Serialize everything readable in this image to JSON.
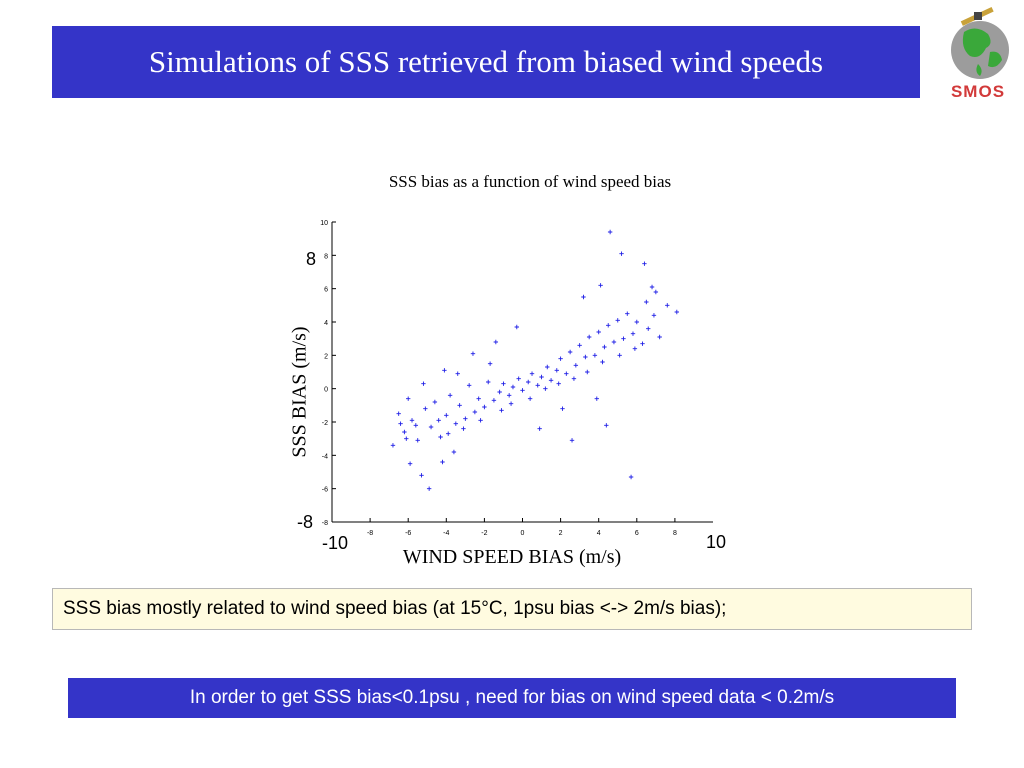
{
  "header": {
    "title": "Simulations of SSS retrieved from biased wind speeds"
  },
  "logo": {
    "text": "SMOS",
    "icon": "smos-satellite-globe-icon"
  },
  "chart_data": {
    "type": "scatter",
    "title": "SSS bias as a function of wind speed bias",
    "xlabel": "WIND SPEED BIAS (m/s)",
    "ylabel": "SSS BIAS (m/s)",
    "xlim": [
      -10,
      10
    ],
    "ylim": [
      -8,
      10
    ],
    "xticks": [
      -8,
      -6,
      -4,
      -2,
      0,
      2,
      4,
      6,
      8
    ],
    "yticks": [
      -8,
      -6,
      -4,
      -2,
      0,
      2,
      4,
      6,
      8,
      10
    ],
    "annotations": {
      "x_min": "-10",
      "x_max": "10",
      "y_min": "-8",
      "y_max": "8"
    },
    "marker": "+",
    "color": "#1f1fe6",
    "grid": false,
    "series": [
      {
        "points": [
          [
            -6.2,
            -2.6
          ],
          [
            -5.8,
            -1.9
          ],
          [
            -5.5,
            -3.1
          ],
          [
            -5.1,
            -1.2
          ],
          [
            -4.8,
            -2.3
          ],
          [
            -4.6,
            -0.8
          ],
          [
            -4.3,
            -2.9
          ],
          [
            -4.0,
            -1.6
          ],
          [
            -3.8,
            -0.4
          ],
          [
            -3.5,
            -2.1
          ],
          [
            -3.3,
            -1.0
          ],
          [
            -3.0,
            -1.8
          ],
          [
            -2.8,
            0.2
          ],
          [
            -2.5,
            -1.4
          ],
          [
            -2.3,
            -0.6
          ],
          [
            -2.0,
            -1.1
          ],
          [
            -1.8,
            0.4
          ],
          [
            -1.5,
            -0.7
          ],
          [
            -1.2,
            -0.2
          ],
          [
            -1.0,
            0.3
          ],
          [
            -0.7,
            -0.4
          ],
          [
            -0.5,
            0.1
          ],
          [
            -0.2,
            0.6
          ],
          [
            0.0,
            -0.1
          ],
          [
            0.3,
            0.4
          ],
          [
            0.5,
            0.9
          ],
          [
            0.8,
            0.2
          ],
          [
            1.0,
            0.7
          ],
          [
            1.3,
            1.3
          ],
          [
            1.5,
            0.5
          ],
          [
            1.8,
            1.1
          ],
          [
            2.0,
            1.8
          ],
          [
            2.3,
            0.9
          ],
          [
            2.5,
            2.2
          ],
          [
            2.8,
            1.4
          ],
          [
            3.0,
            2.6
          ],
          [
            3.3,
            1.9
          ],
          [
            3.5,
            3.1
          ],
          [
            3.8,
            2.0
          ],
          [
            4.0,
            3.4
          ],
          [
            4.3,
            2.5
          ],
          [
            4.5,
            3.8
          ],
          [
            4.8,
            2.8
          ],
          [
            5.0,
            4.1
          ],
          [
            5.3,
            3.0
          ],
          [
            5.5,
            4.5
          ],
          [
            5.8,
            3.3
          ],
          [
            6.0,
            4.0
          ],
          [
            6.3,
            2.7
          ],
          [
            6.6,
            3.6
          ],
          [
            6.9,
            4.4
          ],
          [
            7.2,
            3.1
          ],
          [
            -6.8,
            -3.4
          ],
          [
            -6.5,
            -1.5
          ],
          [
            -5.9,
            -4.5
          ],
          [
            -5.3,
            -5.2
          ],
          [
            -4.9,
            -6.0
          ],
          [
            -4.2,
            -4.4
          ],
          [
            -3.6,
            -3.8
          ],
          [
            -6.0,
            -0.6
          ],
          [
            -5.2,
            0.3
          ],
          [
            -4.1,
            1.1
          ],
          [
            -3.4,
            0.9
          ],
          [
            -2.6,
            2.1
          ],
          [
            -1.7,
            1.5
          ],
          [
            3.2,
            5.5
          ],
          [
            4.1,
            6.2
          ],
          [
            4.6,
            9.4
          ],
          [
            5.2,
            8.1
          ],
          [
            6.4,
            7.5
          ],
          [
            5.7,
            -5.3
          ],
          [
            4.4,
            -2.2
          ],
          [
            2.6,
            -3.1
          ],
          [
            0.9,
            -2.4
          ],
          [
            -0.3,
            3.7
          ],
          [
            -1.4,
            2.8
          ],
          [
            7.6,
            5.0
          ],
          [
            8.1,
            4.6
          ],
          [
            6.8,
            6.1
          ],
          [
            3.9,
            -0.6
          ],
          [
            2.1,
            -1.2
          ],
          [
            -5.6,
            -2.2
          ],
          [
            -4.4,
            -1.9
          ],
          [
            -3.9,
            -2.7
          ],
          [
            -3.1,
            -2.4
          ],
          [
            -2.2,
            -1.9
          ],
          [
            -1.1,
            -1.3
          ],
          [
            -0.6,
            -0.9
          ],
          [
            0.4,
            -0.6
          ],
          [
            1.2,
            0.0
          ],
          [
            1.9,
            0.3
          ],
          [
            2.7,
            0.6
          ],
          [
            3.4,
            1.0
          ],
          [
            4.2,
            1.6
          ],
          [
            5.1,
            2.0
          ],
          [
            5.9,
            2.4
          ],
          [
            6.5,
            5.2
          ],
          [
            7.0,
            5.8
          ],
          [
            -6.4,
            -2.1
          ],
          [
            -6.1,
            -3.0
          ]
        ]
      }
    ]
  },
  "notes": {
    "relation": "SSS bias mostly related to wind speed bias (at 15°C, 1psu bias <-> 2m/s bias);",
    "conclusion": "In order to get SSS bias<0.1psu , need for bias on wind speed data < 0.2m/s"
  },
  "colors": {
    "banner": "#3434c8",
    "note_background": "#fffbe0",
    "marker": "#1f1fe6",
    "logo_text": "#d23a3a"
  }
}
